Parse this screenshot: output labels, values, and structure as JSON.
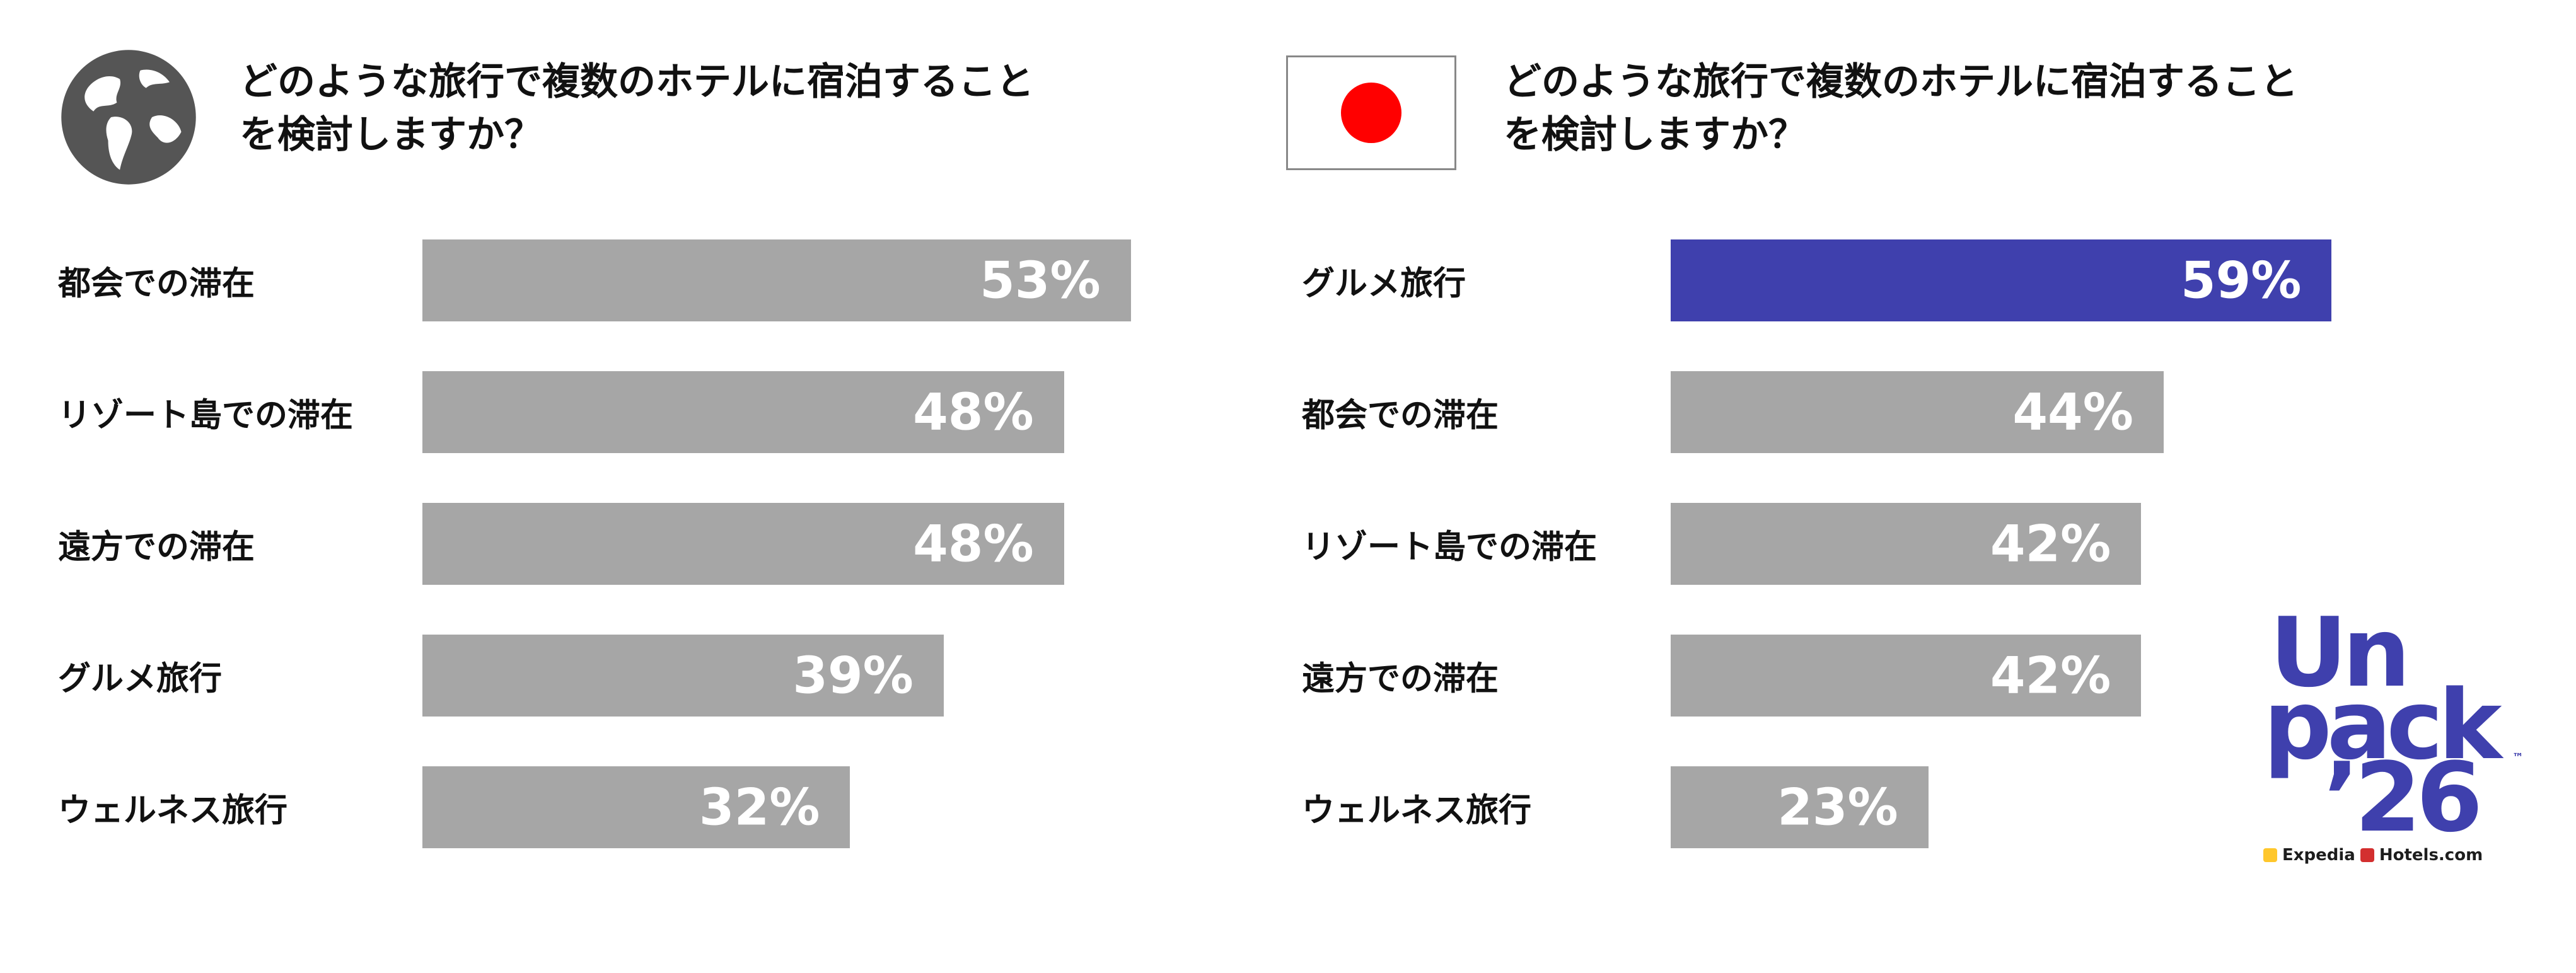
{
  "chart_data": [
    {
      "type": "bar",
      "orientation": "horizontal",
      "title": "どのような旅行で複数のホテルに宿泊することを検討しますか？",
      "title_lines": [
        "どのような旅行で複数のホテルに宿泊すること",
        "を検討しますか？"
      ],
      "icon": "globe-icon",
      "categories": [
        "都会での滞在",
        "リゾート島での滞在",
        "遠方での滞在",
        "グルメ旅行",
        "ウェルネス旅行"
      ],
      "values": [
        53,
        48,
        48,
        39,
        32
      ],
      "value_labels": [
        "53%",
        "48%",
        "48%",
        "39%",
        "32%"
      ],
      "highlight_index": -1,
      "xlim": [
        0,
        100
      ],
      "grid": false,
      "colors": {
        "bar": "#a6a6a6",
        "highlight": "#3f40ad",
        "value_text": "#ffffff"
      }
    },
    {
      "type": "bar",
      "orientation": "horizontal",
      "title": "どのような旅行で複数のホテルに宿泊することを検討しますか？",
      "title_lines": [
        "どのような旅行で複数のホテルに宿泊すること",
        "を検討しますか？"
      ],
      "icon": "japan-flag-icon",
      "categories": [
        "グルメ旅行",
        "都会での滞在",
        "リゾート島での滞在",
        "遠方での滞在",
        "ウェルネス旅行"
      ],
      "values": [
        59,
        44,
        42,
        42,
        23
      ],
      "value_labels": [
        "59%",
        "44%",
        "42%",
        "42%",
        "23%"
      ],
      "highlight_index": 0,
      "xlim": [
        0,
        100
      ],
      "grid": false,
      "colors": {
        "bar": "#a6a6a6",
        "highlight": "#3f40ad",
        "value_text": "#ffffff"
      }
    }
  ],
  "logo": {
    "line1": "Un",
    "line2": "pack",
    "line3": "’26",
    "tm": "™",
    "brand1": "Expedia",
    "brand2": "Hotels.com",
    "color": "#3f40ad"
  }
}
